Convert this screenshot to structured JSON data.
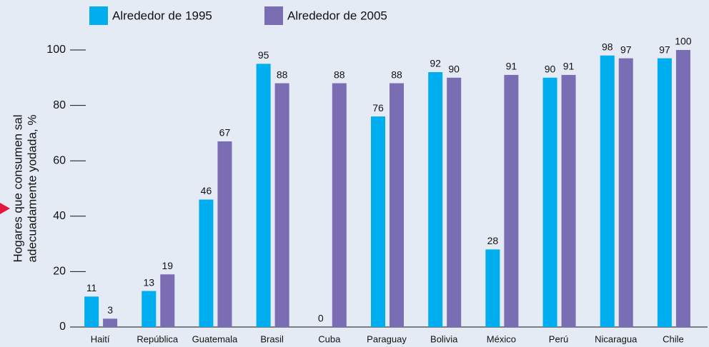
{
  "chart_data": {
    "type": "bar",
    "y_label": [
      "Hogares que consumen sal",
      "adecuadamente yodada, %"
    ],
    "categories": [
      "Haití",
      "República",
      "Guatemala",
      "Brasil",
      "Cuba",
      "Paraguay",
      "Bolivia",
      "México",
      "Perú",
      "Nicaragua",
      "Chile"
    ],
    "series": [
      {
        "name": "Alrededor de 1995",
        "color": "#00aeef",
        "values": [
          11,
          13,
          46,
          95,
          0,
          76,
          92,
          28,
          90,
          98,
          97
        ]
      },
      {
        "name": "Alrededor de 2005",
        "color": "#7a6db3",
        "values": [
          3,
          19,
          67,
          88,
          88,
          88,
          90,
          91,
          91,
          97,
          100
        ]
      }
    ],
    "ylim": [
      0,
      100
    ],
    "yticks": [
      0,
      20,
      40,
      60,
      80,
      100
    ],
    "legend": "top"
  }
}
